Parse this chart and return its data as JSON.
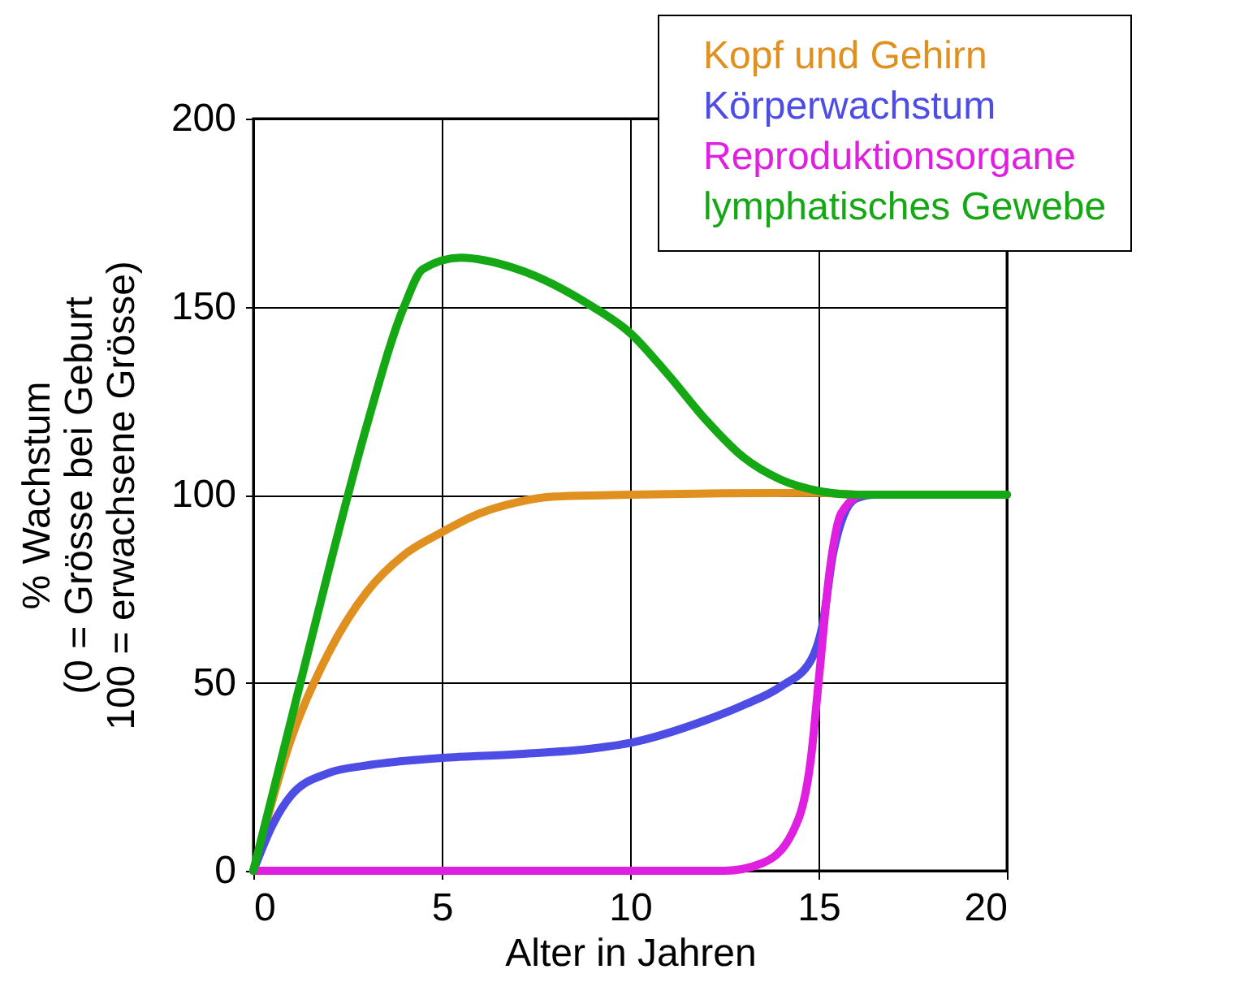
{
  "chart_data": {
    "type": "line",
    "xlabel": "Alter in Jahren",
    "ylabel": "% Wachstum\n(0 = Grösse bei Geburt\n100 = erwachsene Grösse)",
    "xlim": [
      0,
      20
    ],
    "ylim": [
      0,
      200
    ],
    "xticks": [
      0,
      5,
      10,
      15,
      20
    ],
    "yticks": [
      0,
      50,
      100,
      150,
      200
    ],
    "grid": true,
    "legend": "top right",
    "line_style": "solid",
    "marker": "none",
    "series": [
      {
        "name": "Kopf und Gehirn",
        "color": "#e0901e",
        "x": [
          0,
          1,
          2,
          3,
          4,
          5,
          6,
          7,
          8,
          10,
          15,
          16,
          20
        ],
        "values": [
          0,
          35,
          58,
          74,
          84,
          90,
          95,
          98,
          99.5,
          100,
          100.5,
          100,
          100
        ]
      },
      {
        "name": "Körperwachstum",
        "color": "#4d4de6",
        "x": [
          0,
          0.5,
          1,
          2,
          3,
          5,
          7,
          9,
          10,
          12,
          13,
          14,
          14.8,
          15.1,
          15.4,
          16,
          16.5,
          20
        ],
        "values": [
          0,
          12,
          20,
          26,
          28,
          30,
          31,
          32.5,
          34,
          40,
          44,
          49,
          56,
          65,
          85,
          99,
          100,
          100
        ]
      },
      {
        "name": "Reproduktionsorgane",
        "color": "#e020e0",
        "x": [
          0,
          5,
          10,
          12.5,
          13.5,
          14.3,
          14.8,
          15,
          15.3,
          15.6,
          16.2,
          20
        ],
        "values": [
          0,
          0,
          0,
          0,
          2,
          10,
          30,
          50,
          80,
          95,
          100,
          100
        ]
      },
      {
        "name": "lymphatisches Gewebe",
        "color": "#14a814",
        "x": [
          0,
          1,
          2,
          3,
          4,
          4.5,
          5.5,
          7,
          9,
          10,
          11,
          12,
          13,
          14,
          15,
          16,
          20
        ],
        "values": [
          0,
          40,
          80,
          118,
          150,
          160,
          163,
          160,
          150,
          143,
          132,
          120,
          110,
          104,
          101,
          100,
          100
        ]
      }
    ]
  }
}
